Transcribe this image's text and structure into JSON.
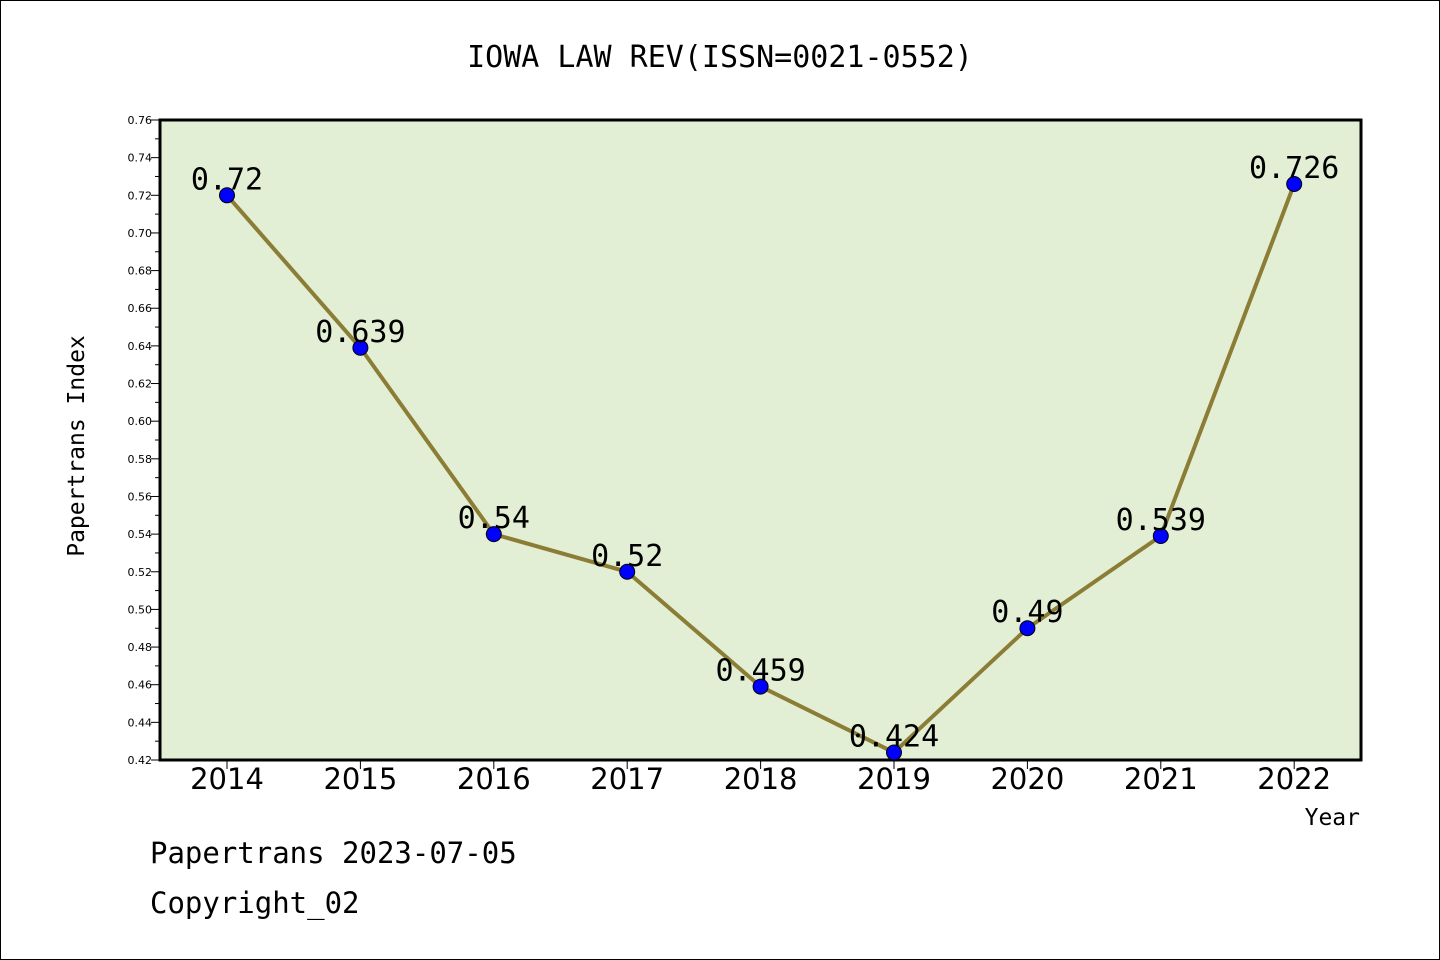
{
  "chart_data": {
    "type": "line",
    "title": "IOWA LAW REV(ISSN=0021-0552)",
    "xlabel": "Year",
    "ylabel": "Papertrans Index",
    "x": [
      "2014",
      "2015",
      "2016",
      "2017",
      "2018",
      "2019",
      "2020",
      "2021",
      "2022"
    ],
    "series": [
      {
        "values": [
          0.72,
          0.639,
          0.54,
          0.52,
          0.459,
          0.424,
          0.49,
          0.539,
          0.726
        ]
      }
    ],
    "data_labels": [
      "0.72",
      "0.639",
      "0.54",
      "0.52",
      "0.459",
      "0.424",
      "0.49",
      "0.539",
      "0.726"
    ],
    "ylim": [
      0.42,
      0.76
    ],
    "yticks": [
      "0.42",
      "0.44",
      "0.46",
      "0.48",
      "0.50",
      "0.52",
      "0.54",
      "0.56",
      "0.58",
      "0.60",
      "0.62",
      "0.64",
      "0.66",
      "0.68",
      "0.70",
      "0.72",
      "0.74",
      "0.76"
    ],
    "grid": false,
    "colors": {
      "plot_background": "#e2efd5",
      "line": "#8b7d35",
      "marker": "#0000ff"
    }
  },
  "footer": {
    "line1": "Papertrans 2023-07-05",
    "line2": "Copyright_02"
  }
}
